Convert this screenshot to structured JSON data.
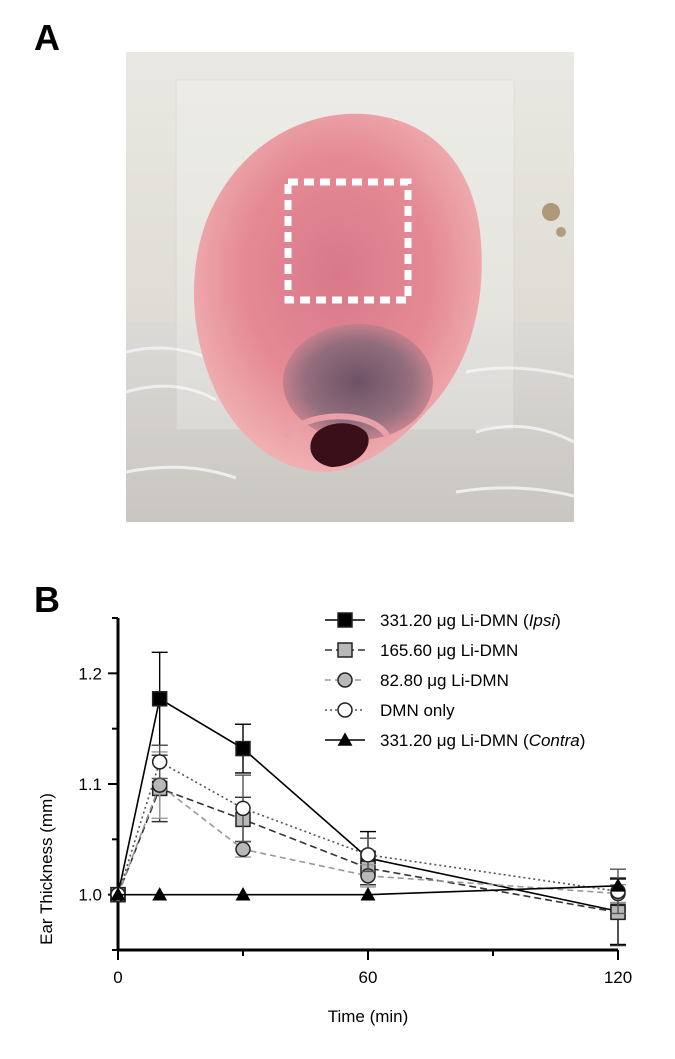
{
  "panels": {
    "a_label": "A",
    "b_label": "B"
  },
  "photo": {
    "subject": "ear-photo",
    "highlight": "dashed-square-region"
  },
  "chart_data": {
    "type": "line",
    "xlabel": "Time (min)",
    "ylabel": "Ear Thickness (mm)",
    "xlim": [
      0,
      120
    ],
    "ylim": [
      0.95,
      1.25
    ],
    "xticks": [
      0,
      60,
      120
    ],
    "yticks": [
      1.0,
      1.1,
      1.2
    ],
    "legend_position": "top-right",
    "grid": false,
    "series": [
      {
        "name": "331.20 μg Li-DMN (",
        "name_italic": "Ipsi",
        "name_suffix": ")",
        "marker": "square",
        "fill": "#000000",
        "line": "solid",
        "color": "#000000",
        "x": [
          0,
          10,
          30,
          60,
          120
        ],
        "y": [
          1.0,
          1.177,
          1.132,
          1.033,
          0.985
        ],
        "err": [
          0,
          0.042,
          0.022,
          0.024,
          0.03
        ]
      },
      {
        "name": "165.60 μg Li-DMN",
        "marker": "square",
        "fill": "#b8b8b8",
        "line": "dashed",
        "color": "#333333",
        "x": [
          0,
          10,
          30,
          60,
          120
        ],
        "y": [
          1.0,
          1.096,
          1.068,
          1.024,
          0.984
        ],
        "err": [
          0,
          0.03,
          0.02,
          0.015,
          0.03
        ]
      },
      {
        "name": "  82.80 μg Li-DMN",
        "marker": "circle",
        "fill": "#b8b8b8",
        "line": "dashed-light",
        "color": "#999999",
        "x": [
          0,
          10,
          30,
          60,
          120
        ],
        "y": [
          1.0,
          1.099,
          1.041,
          1.017,
          1.001
        ],
        "err": [
          0,
          0.03,
          0.007,
          0.01,
          0.008
        ]
      },
      {
        "name": "DMN only",
        "marker": "circle",
        "fill": "#ffffff",
        "line": "dotted",
        "color": "#555555",
        "x": [
          0,
          10,
          30,
          60,
          120
        ],
        "y": [
          1.0,
          1.12,
          1.078,
          1.036,
          1.003
        ],
        "err": [
          0,
          0.015,
          0.03,
          0.015,
          0.02
        ]
      },
      {
        "name": "331.20 μg Li-DMN (",
        "name_italic": "Contra",
        "name_suffix": ")",
        "marker": "triangle",
        "fill": "#000000",
        "line": "solid",
        "color": "#000000",
        "x": [
          0,
          10,
          30,
          60,
          120
        ],
        "y": [
          1.0,
          1.0,
          1.0,
          1.0,
          1.008
        ],
        "err": [
          0,
          0,
          0,
          0,
          0
        ]
      }
    ]
  }
}
